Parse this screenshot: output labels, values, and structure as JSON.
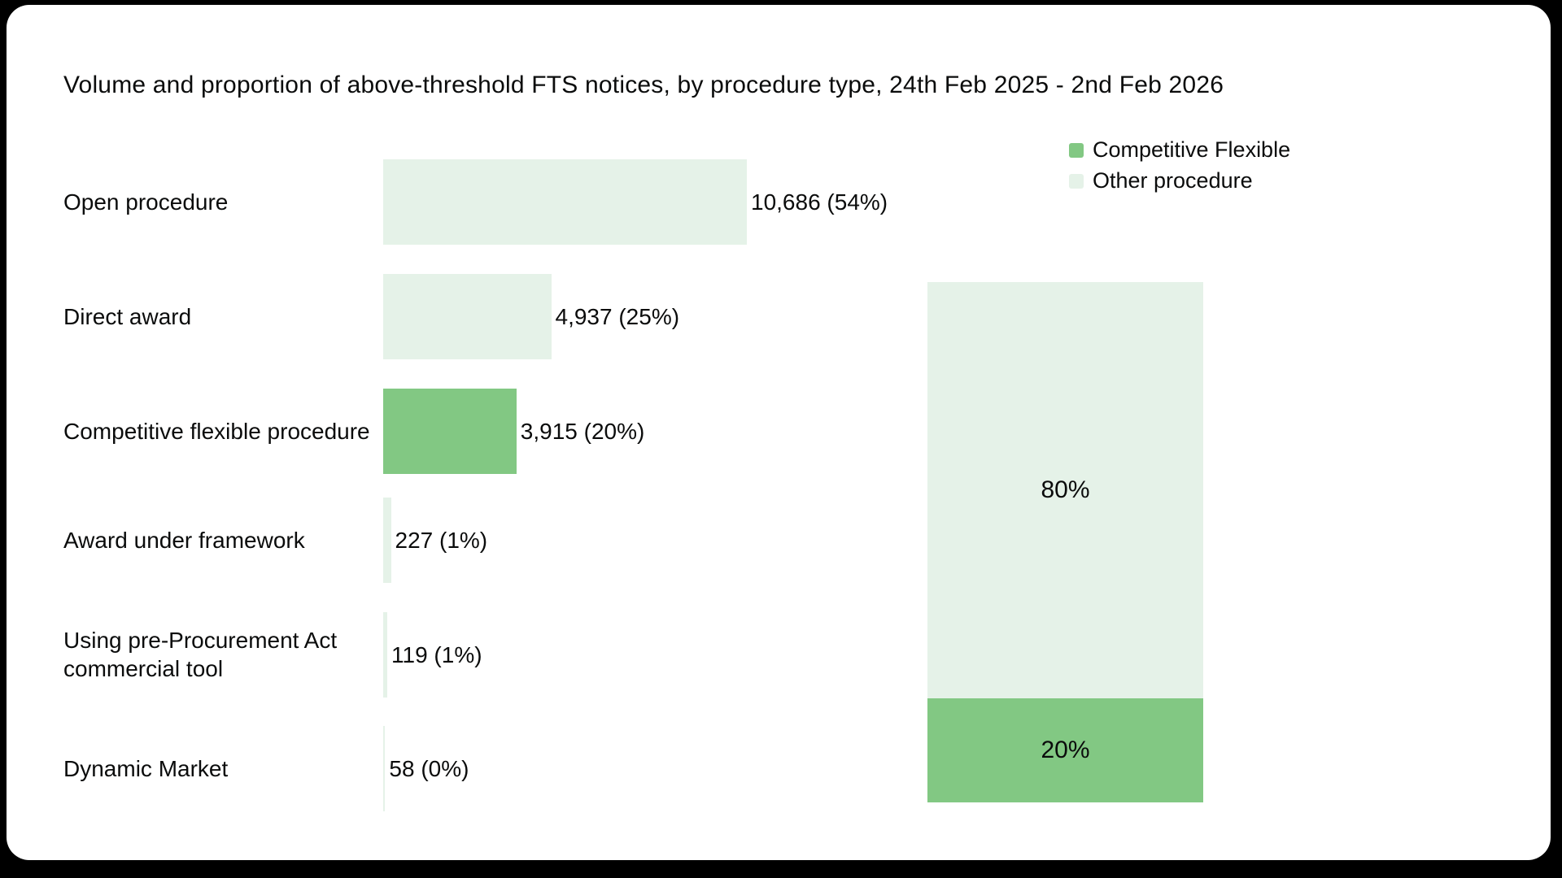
{
  "card": {
    "title": "Volume and proportion of above-threshold FTS notices, by procedure type, 24th Feb 2025 - 2nd Feb 2026"
  },
  "legend": {
    "items": [
      {
        "label": "Competitive Flexible",
        "series": "Competitive Flexible"
      },
      {
        "label": "Other procedure",
        "series": "Other procedure"
      }
    ]
  },
  "colors": {
    "competitive_flexible": "#82C883",
    "other_procedure": "#E5F2E8",
    "text": "#0B0C0C",
    "card_bg": "#FFFFFF",
    "page_bg": "#000000"
  },
  "chart_data": {
    "type": "bar",
    "orientation": "horizontal",
    "title": "Volume and proportion of above-threshold FTS notices, by procedure type, 24th Feb 2025 - 2nd Feb 2026",
    "categories": [
      "Open procedure",
      "Direct award",
      "Competitive flexible procedure",
      "Award under framework",
      "Using pre-Procurement Act commercial tool",
      "Dynamic Market"
    ],
    "values": [
      10686,
      4937,
      3915,
      227,
      119,
      58
    ],
    "value_labels": [
      "10,686 (54%)",
      "4,937 (25%)",
      "3,915 (20%)",
      "227 (1%)",
      "119 (1%)",
      "58 (0%)"
    ],
    "series_by_category": [
      "Other procedure",
      "Other procedure",
      "Competitive Flexible",
      "Other procedure",
      "Other procedure",
      "Other procedure"
    ],
    "x_max": 10686,
    "legend_position": "top-right",
    "grid": false,
    "stacked_bar": {
      "segments": [
        {
          "series": "Other procedure",
          "label": "80%",
          "value": 80
        },
        {
          "series": "Competitive Flexible",
          "label": "20%",
          "value": 20
        }
      ]
    }
  }
}
